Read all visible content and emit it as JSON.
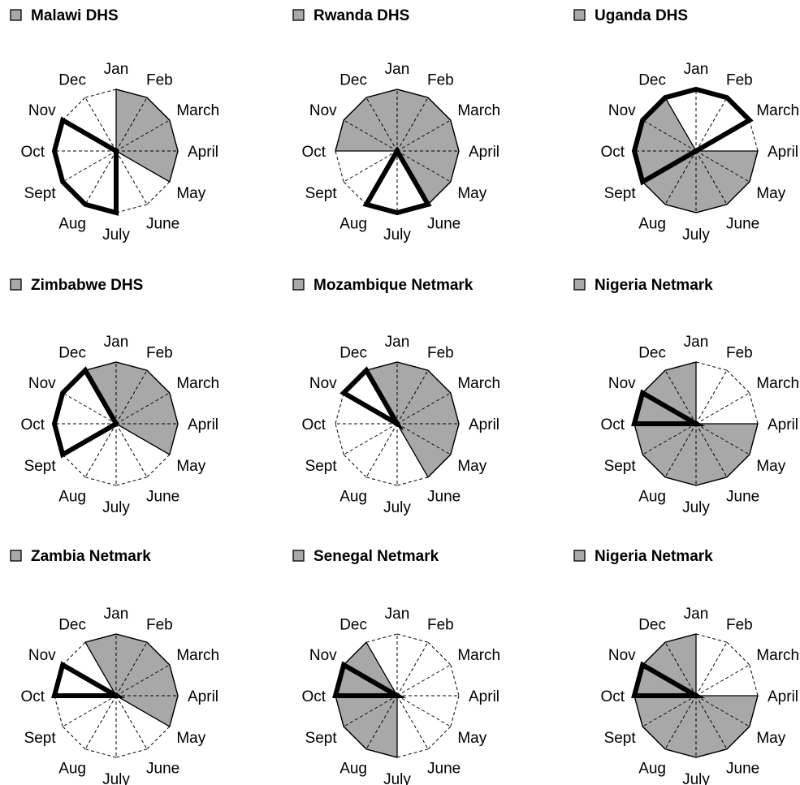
{
  "colors": {
    "filled": "#a8a8a8",
    "outline": "#000000",
    "background": "#ffffff",
    "legend_box": "#a8a8a8"
  },
  "chart_data": [
    {
      "type": "radar",
      "title": "Malawi DHS",
      "legend": "square-swatch-left-of-title",
      "months": [
        "Jan",
        "Feb",
        "March",
        "April",
        "May",
        "June",
        "July",
        "Aug",
        "Sept",
        "Oct",
        "Nov",
        "Dec"
      ],
      "filled_months": [
        "Jan",
        "Feb",
        "March",
        "April",
        "May"
      ],
      "highlighted_months": [
        "July",
        "Aug",
        "Sept",
        "Oct",
        "Nov"
      ]
    },
    {
      "type": "radar",
      "title": "Rwanda DHS",
      "legend": "square-swatch-left-of-title",
      "months": [
        "Jan",
        "Feb",
        "March",
        "April",
        "May",
        "June",
        "July",
        "Aug",
        "Sept",
        "Oct",
        "Nov",
        "Dec"
      ],
      "filled_months": [
        "Oct",
        "Nov",
        "Dec",
        "Jan",
        "Feb",
        "March",
        "April",
        "May",
        "June"
      ],
      "highlighted_months": [
        "June",
        "July",
        "Aug"
      ]
    },
    {
      "type": "radar",
      "title": "Uganda DHS",
      "legend": "square-swatch-left-of-title",
      "months": [
        "Jan",
        "Feb",
        "March",
        "April",
        "May",
        "June",
        "July",
        "Aug",
        "Sept",
        "Oct",
        "Nov",
        "Dec"
      ],
      "filled_months": [
        "April",
        "May",
        "June",
        "July",
        "Aug",
        "Sept",
        "Oct",
        "Nov",
        "Dec"
      ],
      "highlighted_months": [
        "Sept",
        "Oct",
        "Nov",
        "Dec",
        "Jan",
        "Feb",
        "March"
      ]
    },
    {
      "type": "radar",
      "title": "Zimbabwe DHS",
      "legend": "square-swatch-left-of-title",
      "months": [
        "Jan",
        "Feb",
        "March",
        "April",
        "May",
        "June",
        "July",
        "Aug",
        "Sept",
        "Oct",
        "Nov",
        "Dec"
      ],
      "filled_months": [
        "Dec",
        "Jan",
        "Feb",
        "March",
        "April",
        "May"
      ],
      "highlighted_months": [
        "Sept",
        "Oct",
        "Nov",
        "Dec"
      ]
    },
    {
      "type": "radar",
      "title": "Mozambique Netmark",
      "legend": "square-swatch-left-of-title",
      "months": [
        "Jan",
        "Feb",
        "March",
        "April",
        "May",
        "June",
        "July",
        "Aug",
        "Sept",
        "Oct",
        "Nov",
        "Dec"
      ],
      "filled_months": [
        "Dec",
        "Jan",
        "Feb",
        "March",
        "April",
        "May",
        "June"
      ],
      "highlighted_months": [
        "Nov",
        "Dec"
      ]
    },
    {
      "type": "radar",
      "title": "Nigeria Netmark",
      "legend": "square-swatch-left-of-title",
      "months": [
        "Jan",
        "Feb",
        "March",
        "April",
        "May",
        "June",
        "July",
        "Aug",
        "Sept",
        "Oct",
        "Nov",
        "Dec"
      ],
      "filled_months": [
        "April",
        "May",
        "June",
        "July",
        "Aug",
        "Sept",
        "Oct",
        "Nov",
        "Dec",
        "Jan"
      ],
      "highlighted_months": [
        "Oct",
        "Nov"
      ]
    },
    {
      "type": "radar",
      "title": "Zambia Netmark",
      "legend": "square-swatch-left-of-title",
      "months": [
        "Jan",
        "Feb",
        "March",
        "April",
        "May",
        "June",
        "July",
        "Aug",
        "Sept",
        "Oct",
        "Nov",
        "Dec"
      ],
      "filled_months": [
        "Dec",
        "Jan",
        "Feb",
        "March",
        "April",
        "May"
      ],
      "highlighted_months": [
        "Oct",
        "Nov"
      ]
    },
    {
      "type": "radar",
      "title": "Senegal Netmark",
      "legend": "square-swatch-left-of-title",
      "months": [
        "Jan",
        "Feb",
        "March",
        "April",
        "May",
        "June",
        "July",
        "Aug",
        "Sept",
        "Oct",
        "Nov",
        "Dec"
      ],
      "filled_months": [
        "Oct",
        "Nov",
        "Dec",
        "July",
        "Aug",
        "Sept"
      ],
      "highlighted_months": [
        "Oct",
        "Nov"
      ]
    },
    {
      "type": "radar",
      "title": "Nigeria Netmark",
      "legend": "square-swatch-left-of-title",
      "months": [
        "Jan",
        "Feb",
        "March",
        "April",
        "May",
        "June",
        "July",
        "Aug",
        "Sept",
        "Oct",
        "Nov",
        "Dec"
      ],
      "filled_months": [
        "April",
        "May",
        "June",
        "July",
        "Aug",
        "Sept",
        "Oct",
        "Nov",
        "Dec",
        "Jan"
      ],
      "highlighted_months": [
        "Oct",
        "Nov"
      ]
    }
  ]
}
